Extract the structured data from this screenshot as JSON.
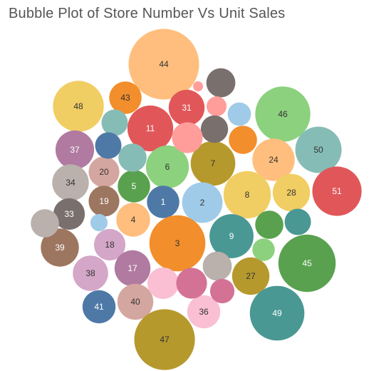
{
  "chart_data": {
    "type": "bubble",
    "title": "Bubble Plot of Store Number Vs Unit Sales",
    "size_measure": "Unit Sales",
    "label_measure": "Store Number",
    "legend": "none",
    "bubbles": [
      {
        "label": "44",
        "size": 1.0,
        "color": "#ffbe7d",
        "label_color": "#333333"
      },
      {
        "label": "43",
        "size": 0.21,
        "color": "#f28e2b",
        "label_color": "#333333"
      },
      {
        "label": "48",
        "size": 0.52,
        "color": "#f1ce63",
        "label_color": "#333333"
      },
      {
        "label": "31",
        "size": 0.26,
        "color": "#e15759",
        "label_color": "#ffffff"
      },
      {
        "label": "46",
        "size": 0.61,
        "color": "#8cd17d",
        "label_color": "#333333"
      },
      {
        "label": "11",
        "size": 0.42,
        "color": "#e15759",
        "label_color": "#ffffff"
      },
      {
        "label": "37",
        "size": 0.3,
        "color": "#b07aa1",
        "label_color": "#ffffff"
      },
      {
        "label": "50",
        "size": 0.43,
        "color": "#86bcb6",
        "label_color": "#333333"
      },
      {
        "label": "24",
        "size": 0.36,
        "color": "#ffbe7d",
        "label_color": "#333333"
      },
      {
        "label": "7",
        "size": 0.4,
        "color": "#b6992d",
        "label_color": "#333333"
      },
      {
        "label": "6",
        "size": 0.37,
        "color": "#8cd17d",
        "label_color": "#333333"
      },
      {
        "label": "20",
        "size": 0.19,
        "color": "#d4a6a0",
        "label_color": "#333333"
      },
      {
        "label": "34",
        "size": 0.27,
        "color": "#bab0ac",
        "label_color": "#333333"
      },
      {
        "label": "5",
        "size": 0.21,
        "color": "#59a14f",
        "label_color": "#ffffff"
      },
      {
        "label": "51",
        "size": 0.49,
        "color": "#e15759",
        "label_color": "#ffffff"
      },
      {
        "label": "8",
        "size": 0.45,
        "color": "#f1ce63",
        "label_color": "#333333"
      },
      {
        "label": "28",
        "size": 0.28,
        "color": "#f1ce63",
        "label_color": "#333333"
      },
      {
        "label": "2",
        "size": 0.33,
        "color": "#a0cbe8",
        "label_color": "#333333"
      },
      {
        "label": "1",
        "size": 0.21,
        "color": "#4e79a7",
        "label_color": "#ffffff"
      },
      {
        "label": "19",
        "size": 0.19,
        "color": "#9d7660",
        "label_color": "#ffffff"
      },
      {
        "label": "33",
        "size": 0.2,
        "color": "#79706e",
        "label_color": "#ffffff"
      },
      {
        "label": "4",
        "size": 0.23,
        "color": "#ffbe7d",
        "label_color": "#333333"
      },
      {
        "label": "9",
        "size": 0.39,
        "color": "#499894",
        "label_color": "#ffffff"
      },
      {
        "label": "3",
        "size": 0.63,
        "color": "#f28e2b",
        "label_color": "#333333"
      },
      {
        "label": "39",
        "size": 0.29,
        "color": "#9d7660",
        "label_color": "#ffffff"
      },
      {
        "label": "18",
        "size": 0.2,
        "color": "#d4a6c8",
        "label_color": "#333333"
      },
      {
        "label": "45",
        "size": 0.66,
        "color": "#59a14f",
        "label_color": "#ffffff"
      },
      {
        "label": "38",
        "size": 0.25,
        "color": "#d4a6c8",
        "label_color": "#333333"
      },
      {
        "label": "17",
        "size": 0.26,
        "color": "#b07aa1",
        "label_color": "#ffffff"
      },
      {
        "label": "27",
        "size": 0.28,
        "color": "#b6992d",
        "label_color": "#333333"
      },
      {
        "label": "41",
        "size": 0.22,
        "color": "#4e79a7",
        "label_color": "#ffffff"
      },
      {
        "label": "40",
        "size": 0.26,
        "color": "#d4a6a0",
        "label_color": "#333333"
      },
      {
        "label": "36",
        "size": 0.22,
        "color": "#fabfd2",
        "label_color": "#333333"
      },
      {
        "label": "49",
        "size": 0.6,
        "color": "#499894",
        "label_color": "#ffffff"
      },
      {
        "label": "47",
        "size": 0.74,
        "color": "#b6992d",
        "label_color": "#333333"
      },
      {
        "label": "",
        "size": 0.02,
        "color": "#ff9d9a",
        "label_color": "#333333"
      },
      {
        "label": "",
        "size": 0.17,
        "color": "#79706e",
        "label_color": "#333333"
      },
      {
        "label": "",
        "size": 0.08,
        "color": "#ff9d9a",
        "label_color": "#333333"
      },
      {
        "label": "",
        "size": 0.11,
        "color": "#a0cbe8",
        "label_color": "#333333"
      },
      {
        "label": "",
        "size": 0.14,
        "color": "#86bcb6",
        "label_color": "#333333"
      },
      {
        "label": "",
        "size": 0.15,
        "color": "#79706e",
        "label_color": "#333333"
      },
      {
        "label": "",
        "size": 0.19,
        "color": "#ff9d9a",
        "label_color": "#333333"
      },
      {
        "label": "",
        "size": 0.16,
        "color": "#f28e2b",
        "label_color": "#333333"
      },
      {
        "label": "",
        "size": 0.14,
        "color": "#4e79a7",
        "label_color": "#333333"
      },
      {
        "label": "",
        "size": 0.16,
        "color": "#86bcb6",
        "label_color": "#333333"
      },
      {
        "label": "",
        "size": 0.16,
        "color": "#bab0ac",
        "label_color": "#333333"
      },
      {
        "label": "",
        "size": 0.06,
        "color": "#a0cbe8",
        "label_color": "#333333"
      },
      {
        "label": "",
        "size": 0.16,
        "color": "#59a14f",
        "label_color": "#333333"
      },
      {
        "label": "",
        "size": 0.14,
        "color": "#499894",
        "label_color": "#333333"
      },
      {
        "label": "",
        "size": 0.1,
        "color": "#8cd17d",
        "label_color": "#333333"
      },
      {
        "label": "",
        "size": 0.17,
        "color": "#bab0ac",
        "label_color": "#333333"
      },
      {
        "label": "",
        "size": 0.2,
        "color": "#fabfd2",
        "label_color": "#333333"
      },
      {
        "label": "",
        "size": 0.19,
        "color": "#d37295",
        "label_color": "#333333"
      },
      {
        "label": "",
        "size": 0.12,
        "color": "#d37295",
        "label_color": "#333333"
      }
    ]
  }
}
